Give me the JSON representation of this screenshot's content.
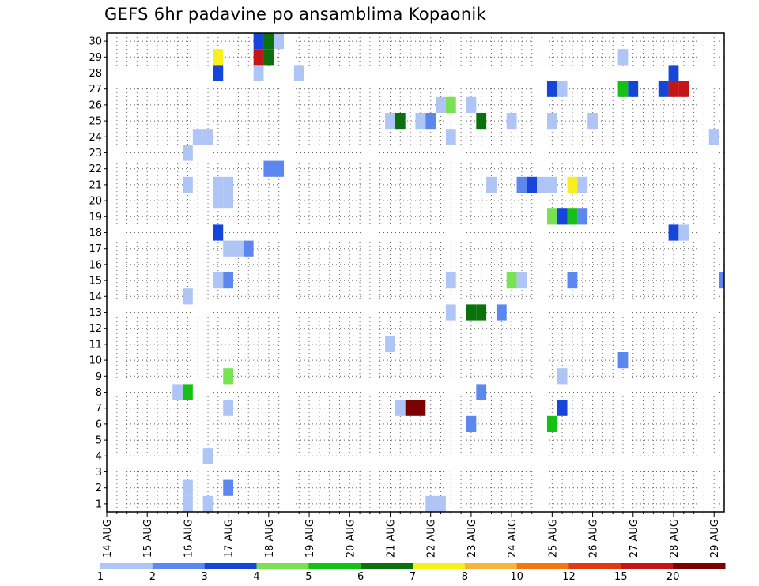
{
  "chart_data": {
    "type": "heatmap",
    "title": "GEFS 6hr padavine po ansamblima Kopaonik",
    "xlabel": "",
    "ylabel": "",
    "x_ticks": [
      "14 AUG",
      "15 AUG",
      "16 AUG",
      "17 AUG",
      "18 AUG",
      "19 AUG",
      "20 AUG",
      "21 AUG",
      "22 AUG",
      "23 AUG",
      "24 AUG",
      "25 AUG",
      "26 AUG",
      "27 AUG",
      "28 AUG",
      "29 AUG"
    ],
    "xlim_days": [
      0,
      15.25
    ],
    "y_ticks": [
      1,
      2,
      3,
      4,
      5,
      6,
      7,
      8,
      9,
      10,
      11,
      12,
      13,
      14,
      15,
      16,
      17,
      18,
      19,
      20,
      21,
      22,
      23,
      24,
      25,
      26,
      27,
      28,
      29,
      30
    ],
    "ylim": [
      0.5,
      30.5
    ],
    "grid": true,
    "colorbar": {
      "labels": [
        "1",
        "2",
        "3",
        "4",
        "5",
        "6",
        "7",
        "8",
        "10",
        "12",
        "15",
        "20"
      ],
      "colors": [
        "#aec5f5",
        "#5b87ef",
        "#1646d9",
        "#78e254",
        "#14c114",
        "#0b720b",
        "#f8ef1c",
        "#f8b43a",
        "#f4760c",
        "#e03a12",
        "#c41616",
        "#7a0202"
      ]
    },
    "cells_note": "each cell: [time in days after 14 AUG 00Z, ensemble member, colour class index 0-11]",
    "cells": [
      [
        3.75,
        30,
        2
      ],
      [
        4.0,
        30,
        5
      ],
      [
        4.25,
        30,
        0
      ],
      [
        2.75,
        29,
        6
      ],
      [
        3.75,
        29,
        10
      ],
      [
        4.0,
        29,
        5
      ],
      [
        12.75,
        29,
        0
      ],
      [
        2.75,
        28,
        2
      ],
      [
        3.75,
        28,
        0
      ],
      [
        4.75,
        28,
        0
      ],
      [
        14.0,
        28,
        2
      ],
      [
        11.0,
        27,
        2
      ],
      [
        11.25,
        27,
        0
      ],
      [
        12.75,
        27,
        4
      ],
      [
        13.0,
        27,
        2
      ],
      [
        13.75,
        27,
        2
      ],
      [
        14.0,
        27,
        10
      ],
      [
        14.25,
        27,
        10
      ],
      [
        8.25,
        26,
        0
      ],
      [
        8.5,
        26,
        3
      ],
      [
        9.0,
        26,
        0
      ],
      [
        7.0,
        25,
        0
      ],
      [
        7.25,
        25,
        5
      ],
      [
        7.75,
        25,
        0
      ],
      [
        8.0,
        25,
        1
      ],
      [
        9.25,
        25,
        5
      ],
      [
        10.0,
        25,
        0
      ],
      [
        11.0,
        25,
        0
      ],
      [
        12.0,
        25,
        0
      ],
      [
        2.25,
        24,
        0
      ],
      [
        2.5,
        24,
        0
      ],
      [
        8.5,
        24,
        0
      ],
      [
        15.0,
        24,
        0
      ],
      [
        2.0,
        23,
        0
      ],
      [
        4.0,
        22,
        1
      ],
      [
        4.25,
        22,
        1
      ],
      [
        2.0,
        21,
        0
      ],
      [
        2.75,
        21,
        0
      ],
      [
        3.0,
        21,
        0
      ],
      [
        9.5,
        21,
        0
      ],
      [
        10.25,
        21,
        1
      ],
      [
        10.5,
        21,
        2
      ],
      [
        10.75,
        21,
        0
      ],
      [
        11.0,
        21,
        0
      ],
      [
        11.5,
        21,
        6
      ],
      [
        11.75,
        21,
        0
      ],
      [
        2.75,
        20,
        0
      ],
      [
        3.0,
        20,
        0
      ],
      [
        11.0,
        19,
        3
      ],
      [
        11.25,
        19,
        2
      ],
      [
        11.5,
        19,
        4
      ],
      [
        11.75,
        19,
        1
      ],
      [
        2.75,
        18,
        2
      ],
      [
        14.0,
        18,
        2
      ],
      [
        14.25,
        18,
        0
      ],
      [
        3.0,
        17,
        0
      ],
      [
        3.25,
        17,
        0
      ],
      [
        3.5,
        17,
        1
      ],
      [
        2.75,
        15,
        0
      ],
      [
        3.0,
        15,
        1
      ],
      [
        8.5,
        15,
        0
      ],
      [
        10.0,
        15,
        3
      ],
      [
        10.25,
        15,
        0
      ],
      [
        11.5,
        15,
        1
      ],
      [
        15.25,
        15,
        1
      ],
      [
        2.0,
        14,
        0
      ],
      [
        8.5,
        13,
        0
      ],
      [
        9.0,
        13,
        5
      ],
      [
        9.25,
        13,
        5
      ],
      [
        9.75,
        13,
        1
      ],
      [
        7.0,
        11,
        0
      ],
      [
        12.75,
        10,
        1
      ],
      [
        3.0,
        9,
        3
      ],
      [
        11.25,
        9,
        0
      ],
      [
        1.75,
        8,
        0
      ],
      [
        2.0,
        8,
        4
      ],
      [
        9.25,
        8,
        1
      ],
      [
        3.0,
        7,
        0
      ],
      [
        7.25,
        7,
        0
      ],
      [
        7.5,
        7,
        11
      ],
      [
        7.75,
        7,
        11
      ],
      [
        11.25,
        7,
        2
      ],
      [
        9.0,
        6,
        1
      ],
      [
        11.0,
        6,
        4
      ],
      [
        2.5,
        4,
        0
      ],
      [
        2.0,
        2,
        0
      ],
      [
        3.0,
        2,
        1
      ],
      [
        2.0,
        1,
        0
      ],
      [
        2.5,
        1,
        0
      ],
      [
        8.0,
        1,
        0
      ],
      [
        8.25,
        1,
        0
      ]
    ]
  }
}
